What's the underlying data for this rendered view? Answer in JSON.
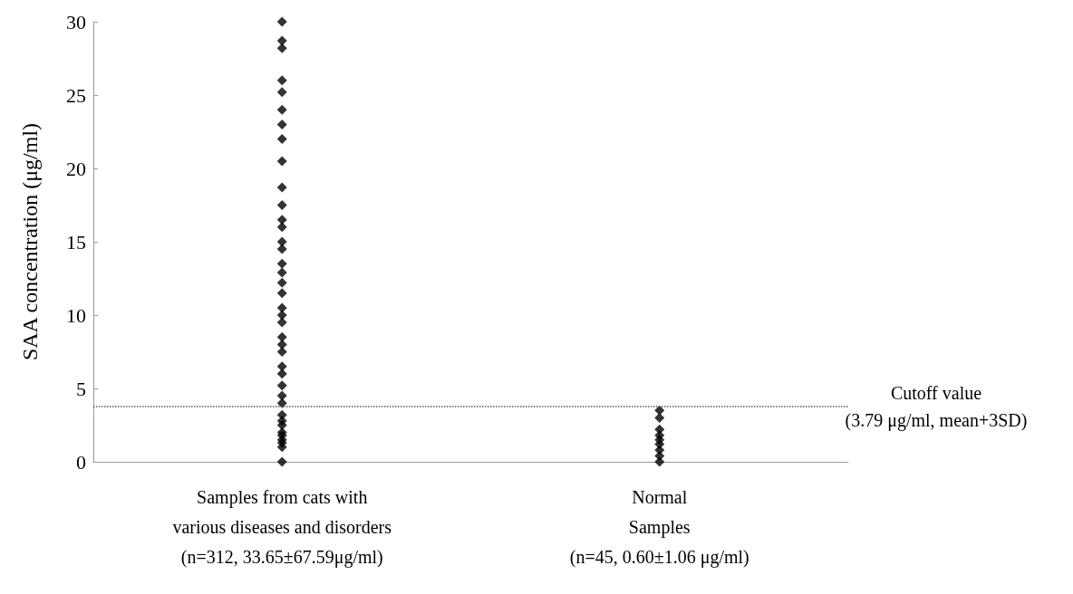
{
  "chart_data": {
    "type": "scatter",
    "ylabel": "SAA concentration (μg/ml)",
    "categories": [
      "Samples from cats with\nvarious diseases and disorders\n(n=312, 33.65±67.59μg/ml)",
      "Normal\nSamples\n(n=45, 0.60±1.06 μg/ml)"
    ],
    "series": [
      {
        "color": "#000000",
        "x": [
          "Samples from cats with\nvarious diseases and disorders\n(n=312, 33.65±67.59μg/ml)",
          "Samples from cats with\nvarious diseases and disorders\n(n=312, 33.65±67.59μg/ml)",
          "Samples from cats with\nvarious diseases and disorders\n(n=312, 33.65±67.59μg/ml)",
          "Samples from cats with\nvarious diseases and disorders\n(n=312, 33.65±67.59μg/ml)",
          "Samples from cats with\nvarious diseases and disorders\n(n=312, 33.65±67.59μg/ml)",
          "Samples from cats with\nvarious diseases and disorders\n(n=312, 33.65±67.59μg/ml)",
          "Samples from cats with\nvarious diseases and disorders\n(n=312, 33.65±67.59μg/ml)",
          "Samples from cats with\nvarious diseases and disorders\n(n=312, 33.65±67.59μg/ml)",
          "Samples from cats with\nvarious diseases and disorders\n(n=312, 33.65±67.59μg/ml)",
          "Samples from cats with\nvarious diseases and disorders\n(n=312, 33.65±67.59μg/ml)",
          "Samples from cats with\nvarious diseases and disorders\n(n=312, 33.65±67.59μg/ml)",
          "Samples from cats with\nvarious diseases and disorders\n(n=312, 33.65±67.59μg/ml)",
          "Samples from cats with\nvarious diseases and disorders\n(n=312, 33.65±67.59μg/ml)",
          "Samples from cats with\nvarious diseases and disorders\n(n=312, 33.65±67.59μg/ml)",
          "Samples from cats with\nvarious diseases and disorders\n(n=312, 33.65±67.59μg/ml)",
          "Samples from cats with\nvarious diseases and disorders\n(n=312, 33.65±67.59μg/ml)",
          "Samples from cats with\nvarious diseases and disorders\n(n=312, 33.65±67.59μg/ml)",
          "Samples from cats with\nvarious diseases and disorders\n(n=312, 33.65±67.59μg/ml)",
          "Samples from cats with\nvarious diseases and disorders\n(n=312, 33.65±67.59μg/ml)",
          "Samples from cats with\nvarious diseases and disorders\n(n=312, 33.65±67.59μg/ml)",
          "Samples from cats with\nvarious diseases and disorders\n(n=312, 33.65±67.59μg/ml)",
          "Samples from cats with\nvarious diseases and disorders\n(n=312, 33.65±67.59μg/ml)",
          "Samples from cats with\nvarious diseases and disorders\n(n=312, 33.65±67.59μg/ml)",
          "Samples from cats with\nvarious diseases and disorders\n(n=312, 33.65±67.59μg/ml)",
          "Samples from cats with\nvarious diseases and disorders\n(n=312, 33.65±67.59μg/ml)",
          "Samples from cats with\nvarious diseases and disorders\n(n=312, 33.65±67.59μg/ml)",
          "Samples from cats with\nvarious diseases and disorders\n(n=312, 33.65±67.59μg/ml)",
          "Samples from cats with\nvarious diseases and disorders\n(n=312, 33.65±67.59μg/ml)",
          "Samples from cats with\nvarious diseases and disorders\n(n=312, 33.65±67.59μg/ml)",
          "Samples from cats with\nvarious diseases and disorders\n(n=312, 33.65±67.59μg/ml)",
          "Samples from cats with\nvarious diseases and disorders\n(n=312, 33.65±67.59μg/ml)",
          "Samples from cats with\nvarious diseases and disorders\n(n=312, 33.65±67.59μg/ml)",
          "Samples from cats with\nvarious diseases and disorders\n(n=312, 33.65±67.59μg/ml)",
          "Samples from cats with\nvarious diseases and disorders\n(n=312, 33.65±67.59μg/ml)",
          "Samples from cats with\nvarious diseases and disorders\n(n=312, 33.65±67.59μg/ml)",
          "Samples from cats with\nvarious diseases and disorders\n(n=312, 33.65±67.59μg/ml)",
          "Samples from cats with\nvarious diseases and disorders\n(n=312, 33.65±67.59μg/ml)",
          "Samples from cats with\nvarious diseases and disorders\n(n=312, 33.65±67.59μg/ml)",
          "Samples from cats with\nvarious diseases and disorders\n(n=312, 33.65±67.59μg/ml)"
        ],
        "values": [
          30,
          28.7,
          28.2,
          26,
          25.2,
          24,
          23,
          22,
          20.5,
          18.7,
          17.5,
          16.5,
          16,
          15,
          14.5,
          13.5,
          12.9,
          12.2,
          11.5,
          10.5,
          10,
          9.5,
          8.5,
          8,
          7.5,
          6.5,
          6,
          5.2,
          4.5,
          4,
          3.2,
          2.8,
          2.5,
          2,
          1.8,
          1.5,
          1.3,
          1,
          0
        ]
      },
      {
        "color": "#000000",
        "x": [
          "Normal\nSamples\n(n=45, 0.60±1.06 μg/ml)",
          "Normal\nSamples\n(n=45, 0.60±1.06 μg/ml)",
          "Normal\nSamples\n(n=45, 0.60±1.06 μg/ml)",
          "Normal\nSamples\n(n=45, 0.60±1.06 μg/ml)",
          "Normal\nSamples\n(n=45, 0.60±1.06 μg/ml)",
          "Normal\nSamples\n(n=45, 0.60±1.06 μg/ml)",
          "Normal\nSamples\n(n=45, 0.60±1.06 μg/ml)",
          "Normal\nSamples\n(n=45, 0.60±1.06 μg/ml)",
          "Normal\nSamples\n(n=45, 0.60±1.06 μg/ml)"
        ],
        "values": [
          3.5,
          3,
          2.2,
          1.8,
          1.5,
          1.2,
          0.8,
          0.4,
          0
        ]
      }
    ],
    "ylim": [
      0,
      30
    ],
    "yticks": [
      0,
      5,
      10,
      15,
      20,
      25,
      30
    ],
    "grid": false,
    "marker": "diamond",
    "ref_lines": [
      {
        "axis": "y",
        "value": 3.79,
        "label": "Cutoff value\n(3.79 μg/ml, mean+3SD)",
        "line_style": "dotted",
        "color": "#555555"
      }
    ]
  }
}
